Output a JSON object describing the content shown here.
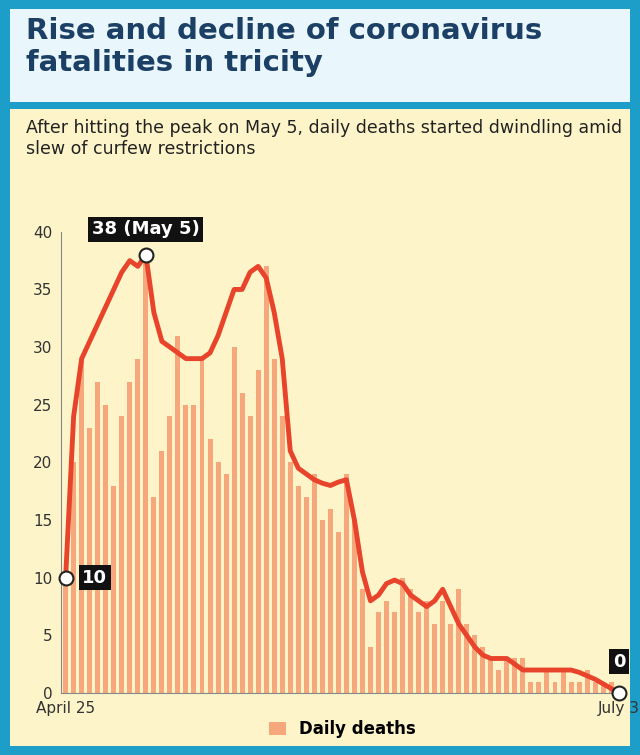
{
  "chart_data": {
    "type": "bar",
    "title": "Rise and decline of coronavirus fatalities in tricity",
    "subtitle": "After hitting the peak on May 5, daily deaths started dwindling amid slew of curfew restrictions",
    "categories": [
      "April 25",
      null,
      null,
      null,
      null,
      null,
      null,
      null,
      null,
      null,
      null,
      null,
      null,
      null,
      null,
      null,
      null,
      null,
      null,
      null,
      null,
      null,
      null,
      null,
      null,
      null,
      null,
      null,
      null,
      null,
      null,
      null,
      null,
      null,
      null,
      null,
      null,
      null,
      null,
      null,
      null,
      null,
      null,
      null,
      null,
      null,
      null,
      null,
      null,
      null,
      null,
      null,
      null,
      null,
      null,
      null,
      null,
      null,
      null,
      null,
      null,
      null,
      null,
      null,
      null,
      null,
      null,
      null,
      null,
      "July 3"
    ],
    "series": [
      {
        "name": "Daily deaths",
        "type": "bar",
        "color": "#f6a77c",
        "values": [
          10,
          20,
          29,
          23,
          27,
          25,
          18,
          24,
          27,
          29,
          38,
          17,
          21,
          24,
          31,
          25,
          25,
          29,
          22,
          20,
          19,
          30,
          26,
          24,
          28,
          37,
          29,
          24,
          20,
          18,
          17,
          19,
          15,
          16,
          14,
          19,
          15,
          9,
          4,
          7,
          8,
          7,
          10,
          9,
          7,
          8,
          6,
          8,
          6,
          9,
          6,
          5,
          4,
          3,
          2,
          3,
          3,
          3,
          1,
          1,
          2,
          1,
          2,
          1,
          1,
          2,
          1,
          1,
          1,
          0
        ]
      },
      {
        "type": "line",
        "color": "#e8432b",
        "values": [
          10,
          24,
          29,
          30.5,
          32,
          33.5,
          35,
          36.5,
          37.5,
          37,
          38,
          33,
          30.5,
          30,
          29.5,
          29,
          29,
          29,
          29.5,
          31,
          33,
          35,
          35,
          36.5,
          37,
          36,
          33,
          29,
          21,
          19.5,
          19,
          18.5,
          18.2,
          18,
          18.3,
          18.5,
          15,
          10.5,
          8,
          8.5,
          9.5,
          9.8,
          9.5,
          8.5,
          8,
          7.5,
          8,
          9,
          7.5,
          6,
          5,
          4,
          3.3,
          3,
          3,
          3,
          2.5,
          2,
          2,
          2,
          2,
          2,
          2,
          2,
          1.8,
          1.5,
          1.2,
          0.8,
          0.4,
          0
        ]
      }
    ],
    "ylim": [
      0,
      40
    ],
    "yticks": [
      0,
      5,
      10,
      15,
      20,
      25,
      30,
      35,
      40
    ],
    "legend": "lower center",
    "annotations": [
      {
        "text": "38 (May 5)",
        "value": 38
      },
      {
        "text": "10",
        "value": 10
      },
      {
        "text": "0",
        "value": 0
      }
    ]
  }
}
